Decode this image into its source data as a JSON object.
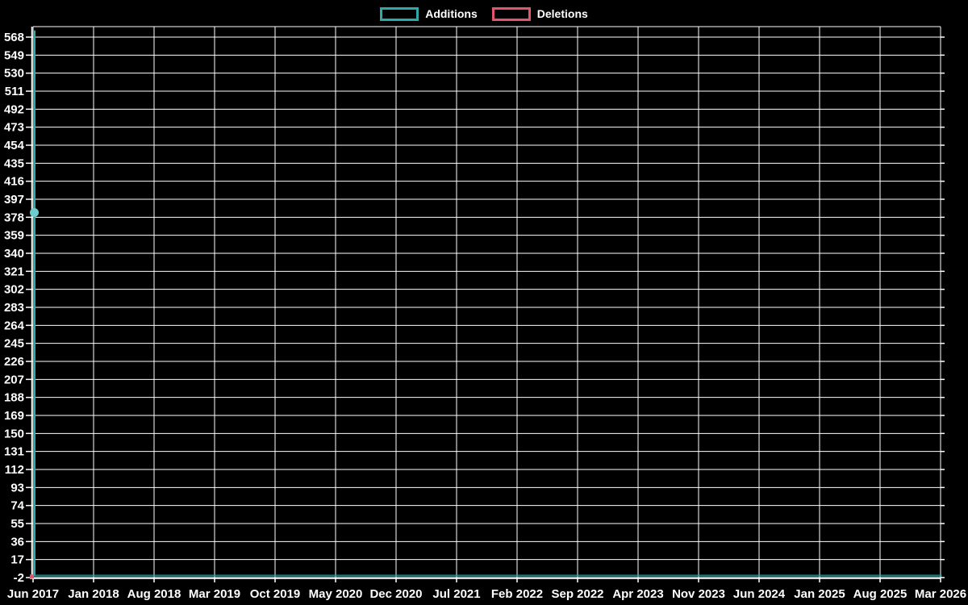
{
  "chart_data": {
    "type": "line",
    "title": "",
    "background_color": "#000000",
    "text_color": "#ffffff",
    "grid": {
      "on": true,
      "color": "#ffffff"
    },
    "legend": {
      "position": "top-center",
      "items": [
        "Additions",
        "Deletions"
      ]
    },
    "x_axis": {
      "tick_labels": [
        "Jun 2017",
        "Jan 2018",
        "Aug 2018",
        "Mar 2019",
        "Oct 2019",
        "May 2020",
        "Dec 2020",
        "Jul 2021",
        "Feb 2022",
        "Sep 2022",
        "Apr 2023",
        "Nov 2023",
        "Jun 2024",
        "Jan 2025",
        "Aug 2025",
        "Mar 2026"
      ],
      "tick_interval_months": 7
    },
    "y_axis": {
      "tick_values": [
        568,
        549,
        530,
        511,
        492,
        473,
        454,
        435,
        416,
        397,
        378,
        359,
        340,
        321,
        302,
        283,
        264,
        245,
        226,
        207,
        188,
        169,
        150,
        131,
        112,
        93,
        74,
        55,
        36,
        17,
        -2
      ],
      "min": -2,
      "max": 579,
      "tick_step": 19
    },
    "series": [
      {
        "name": "Additions",
        "color": "#2FA8A8",
        "highlight_color": "#6FCCCC",
        "points": [
          [
            "Jun 2017",
            575
          ],
          [
            "Jun 2017",
            383
          ],
          [
            "Jun 2017",
            0
          ],
          [
            "Mar 2026",
            0
          ]
        ],
        "highlight_point": [
          "Jun 2017",
          383
        ]
      },
      {
        "name": "Deletions",
        "color": "#E0566B",
        "points": [
          [
            "Jun 2017",
            0
          ]
        ]
      }
    ]
  }
}
